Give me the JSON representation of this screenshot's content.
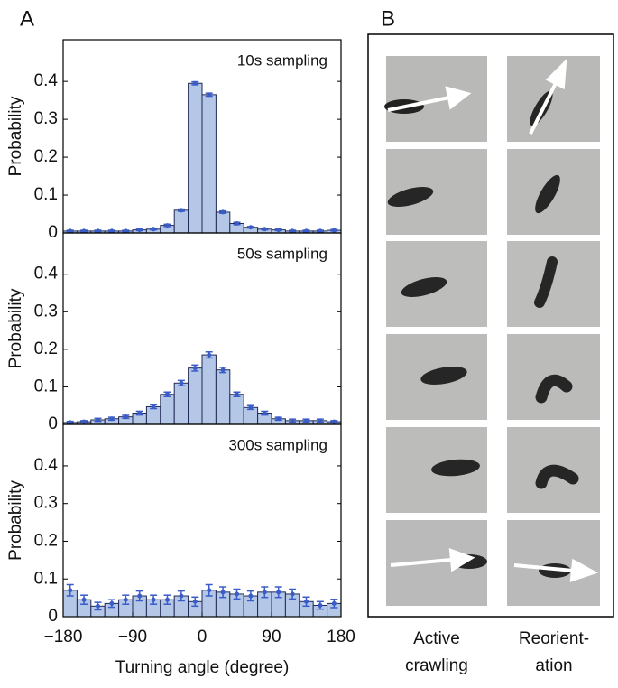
{
  "chart_data": [
    {
      "type": "histogram",
      "annotation": "10s sampling",
      "ylabel": "Probability",
      "bins": [
        -180,
        -162,
        -144,
        -126,
        -108,
        -90,
        -72,
        -54,
        -36,
        -18,
        0,
        18,
        36,
        54,
        72,
        90,
        108,
        126,
        144,
        162,
        180
      ],
      "values": [
        0.005,
        0.005,
        0.005,
        0.005,
        0.005,
        0.008,
        0.01,
        0.02,
        0.06,
        0.395,
        0.365,
        0.055,
        0.025,
        0.015,
        0.01,
        0.008,
        0.005,
        0.005,
        0.005,
        0.007
      ],
      "errors": [
        0.002,
        0.002,
        0.002,
        0.002,
        0.002,
        0.002,
        0.002,
        0.003,
        0.003,
        0.004,
        0.004,
        0.003,
        0.003,
        0.002,
        0.002,
        0.002,
        0.002,
        0.002,
        0.002,
        0.002
      ],
      "color": "#b4c7e7",
      "error_color": "#3a5cc8",
      "xlim": [
        -180,
        180
      ],
      "ylim": [
        0,
        0.51
      ],
      "yticks": [
        0,
        0.1,
        0.2,
        0.3,
        0.4
      ]
    },
    {
      "type": "histogram",
      "annotation": "50s sampling",
      "ylabel": "Probability",
      "bins": [
        -180,
        -162,
        -144,
        -126,
        -108,
        -90,
        -72,
        -54,
        -36,
        -18,
        0,
        18,
        36,
        54,
        72,
        90,
        108,
        126,
        144,
        162,
        180
      ],
      "values": [
        0.005,
        0.007,
        0.012,
        0.015,
        0.02,
        0.03,
        0.047,
        0.08,
        0.11,
        0.15,
        0.185,
        0.145,
        0.08,
        0.045,
        0.03,
        0.015,
        0.01,
        0.01,
        0.01,
        0.007
      ],
      "errors": [
        0.003,
        0.003,
        0.004,
        0.004,
        0.004,
        0.005,
        0.005,
        0.006,
        0.007,
        0.008,
        0.008,
        0.007,
        0.006,
        0.005,
        0.005,
        0.004,
        0.004,
        0.004,
        0.004,
        0.003
      ],
      "color": "#b4c7e7",
      "error_color": "#3a5cc8",
      "xlim": [
        -180,
        180
      ],
      "ylim": [
        0,
        0.51
      ],
      "yticks": [
        0,
        0.1,
        0.2,
        0.3,
        0.4
      ]
    },
    {
      "type": "histogram",
      "annotation": "300s sampling",
      "ylabel": "Probability",
      "xlabel": "Turning angle (degree)",
      "bins": [
        -180,
        -162,
        -144,
        -126,
        -108,
        -90,
        -72,
        -54,
        -36,
        -18,
        0,
        18,
        36,
        54,
        72,
        90,
        108,
        126,
        144,
        162,
        180
      ],
      "values": [
        0.07,
        0.045,
        0.028,
        0.035,
        0.045,
        0.055,
        0.045,
        0.045,
        0.055,
        0.04,
        0.07,
        0.065,
        0.06,
        0.055,
        0.065,
        0.065,
        0.06,
        0.04,
        0.03,
        0.035
      ],
      "errors": [
        0.015,
        0.012,
        0.01,
        0.01,
        0.012,
        0.013,
        0.012,
        0.012,
        0.013,
        0.012,
        0.015,
        0.014,
        0.013,
        0.013,
        0.014,
        0.014,
        0.013,
        0.012,
        0.01,
        0.011
      ],
      "color": "#b4c7e7",
      "error_color": "#3a5cc8",
      "xlim": [
        -180,
        180
      ],
      "ylim": [
        0,
        0.51
      ],
      "yticks": [
        0,
        0.1,
        0.2,
        0.3,
        0.4
      ],
      "xticks": [
        {
          "value": -180,
          "label": "−180"
        },
        {
          "value": -90,
          "label": "−90"
        },
        0,
        90,
        180
      ]
    }
  ],
  "panels": {
    "a_label": "A",
    "b_label": "B",
    "columns": [
      [
        "Active",
        "crawling"
      ],
      [
        "Reorient-",
        "ation"
      ]
    ]
  }
}
